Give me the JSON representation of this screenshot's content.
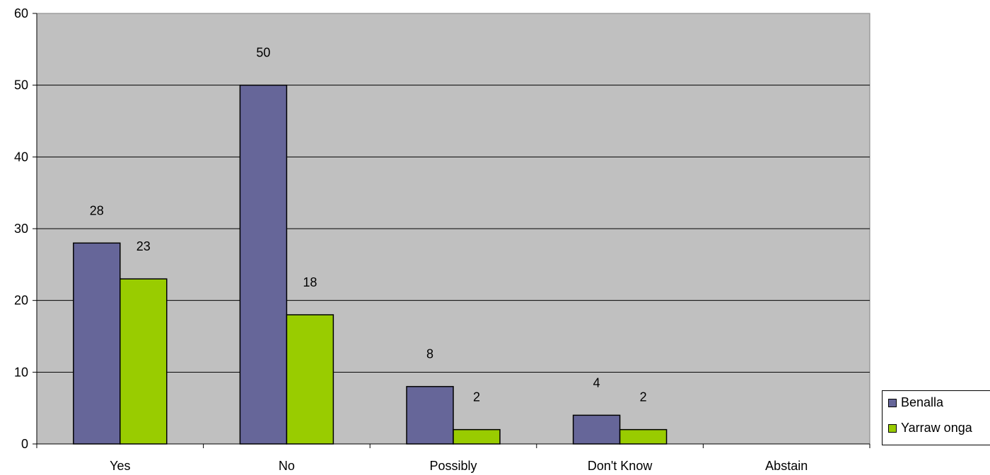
{
  "chart_data": {
    "type": "bar",
    "title": "",
    "xlabel": "",
    "ylabel": "",
    "categories": [
      "Yes",
      "No",
      "Possibly",
      "Don't Know",
      "Abstain"
    ],
    "series": [
      {
        "name": "Benalla",
        "color": "#666699",
        "values": [
          28,
          50,
          8,
          4,
          null
        ]
      },
      {
        "name": "Yarraw onga",
        "color": "#99cc00",
        "values": [
          23,
          18,
          2,
          2,
          null
        ]
      }
    ],
    "ylim": [
      0,
      60
    ],
    "yticks": [
      0,
      10,
      20,
      30,
      40,
      50,
      60
    ],
    "grid": true,
    "plot_background": "#c0c0c0",
    "legend_position": "right",
    "data_labels": true
  }
}
